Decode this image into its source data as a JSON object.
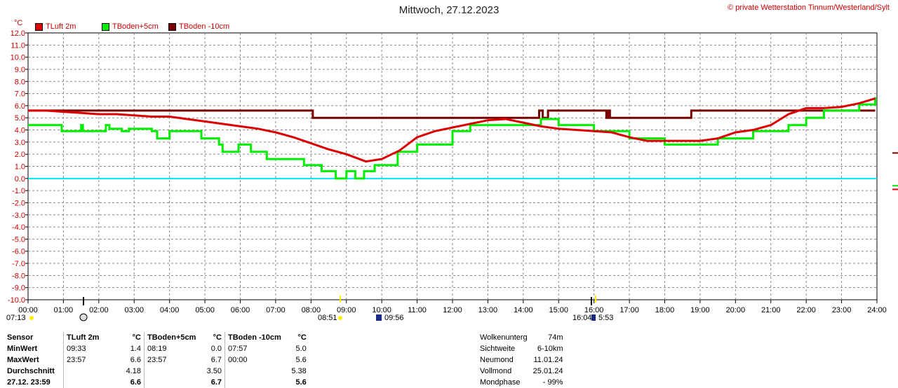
{
  "header": {
    "title": "Mittwoch, 27.12.2023",
    "credit": "© private Wetterstation Tinnum/Westerland/Sylt",
    "unit": "°C"
  },
  "colors": {
    "tluft": "#dd0000",
    "tboden5": "#00ee00",
    "tboden10": "#7a0000",
    "zero_line": "#00e5ee",
    "grid": "#888888"
  },
  "chart_data": {
    "type": "line",
    "title": "Mittwoch, 27.12.2023",
    "ylabel": "°C",
    "ylim": [
      -10,
      12
    ],
    "xlim": [
      0,
      24
    ],
    "grid": true,
    "legend": "top-left",
    "y_ticks": [
      "12.0",
      "11.0",
      "10.0",
      "9.0",
      "8.0",
      "7.0",
      "6.0",
      "5.0",
      "4.0",
      "3.0",
      "2.0",
      "1.0",
      "0.0",
      "-1.0",
      "-2.0",
      "-3.0",
      "-4.0",
      "-5.0",
      "-6.0",
      "-7.0",
      "-8.0",
      "-9.0",
      "-10.0"
    ],
    "x_ticks": [
      "00:00",
      "01:00",
      "02:00",
      "03:00",
      "04:00",
      "05:00",
      "06:00",
      "07:00",
      "08:00",
      "09:00",
      "10:00",
      "11:00",
      "12:00",
      "13:00",
      "14:00",
      "15:00",
      "16:00",
      "17:00",
      "18:00",
      "19:00",
      "20:00",
      "21:00",
      "22:00",
      "23:00",
      "24:00"
    ],
    "series": [
      {
        "name": "TLuft 2m",
        "color": "#dd0000",
        "x": [
          0,
          0.5,
          1,
          1.5,
          2,
          2.5,
          3,
          3.5,
          4,
          4.5,
          5,
          5.5,
          6,
          6.5,
          7,
          7.5,
          8,
          8.5,
          9,
          9.55,
          10,
          10.5,
          11,
          11.5,
          12,
          12.5,
          13,
          13.5,
          14,
          14.5,
          15,
          15.5,
          16,
          16.5,
          17,
          17.5,
          18,
          18.5,
          19,
          19.5,
          20,
          20.5,
          21,
          21.5,
          22,
          22.5,
          23,
          23.5,
          23.95
        ],
        "values": [
          5.6,
          5.6,
          5.5,
          5.4,
          5.3,
          5.3,
          5.2,
          5.1,
          5.1,
          4.9,
          4.7,
          4.5,
          4.3,
          4.1,
          3.8,
          3.4,
          2.9,
          2.4,
          2.0,
          1.4,
          1.6,
          2.3,
          3.4,
          3.9,
          4.2,
          4.5,
          4.8,
          4.9,
          4.6,
          4.3,
          4.1,
          4.0,
          3.9,
          3.8,
          3.4,
          3.1,
          3.1,
          3.1,
          3.1,
          3.3,
          3.8,
          4.0,
          4.4,
          5.3,
          5.8,
          5.8,
          5.9,
          6.2,
          6.6
        ]
      },
      {
        "name": "TBoden+5cm",
        "color": "#00ee00",
        "x": [
          0,
          0.3,
          0.35,
          0.9,
          0.95,
          1.5,
          1.55,
          2.2,
          2.3,
          2.65,
          2.85,
          3.3,
          3.5,
          3.65,
          4.0,
          4.9,
          5.4,
          5.5,
          5.95,
          6.3,
          6.75,
          7.2,
          7.8,
          8.1,
          8.3,
          8.5,
          8.7,
          9.0,
          9.25,
          9.5,
          9.8,
          10.2,
          10.45,
          11.0,
          12.0,
          12.5,
          13.5,
          14.5,
          15.0,
          15.5,
          16.0,
          16.5,
          17.0,
          18.0,
          18.5,
          19.0,
          19.5,
          20.0,
          20.5,
          21.0,
          21.5,
          22.0,
          22.5,
          23.0,
          23.5,
          23.95
        ],
        "values": [
          4.4,
          4.4,
          4.4,
          4.4,
          3.9,
          4.4,
          3.9,
          4.4,
          4.1,
          3.9,
          4.1,
          4.1,
          3.9,
          3.3,
          3.9,
          3.3,
          2.8,
          2.2,
          2.8,
          2.2,
          1.6,
          1.6,
          1.1,
          1.1,
          0.6,
          0.6,
          0.0,
          0.6,
          0.0,
          0.6,
          1.1,
          1.1,
          2.2,
          2.8,
          3.9,
          4.4,
          4.4,
          4.9,
          4.4,
          4.4,
          3.9,
          3.9,
          3.3,
          2.8,
          2.8,
          2.8,
          3.3,
          3.3,
          3.9,
          3.9,
          4.4,
          5.0,
          5.6,
          5.6,
          6.1,
          6.7
        ]
      },
      {
        "name": "TBoden -10cm",
        "color": "#7a0000",
        "x": [
          0,
          4,
          7.95,
          8.05,
          13.0,
          14.4,
          14.45,
          14.55,
          14.7,
          16.0,
          16.3,
          16.35,
          16.4,
          16.45,
          16.5,
          18.0,
          18.5,
          18.65,
          18.75,
          19.0,
          21.0,
          22.0,
          23.95
        ],
        "values": [
          5.6,
          5.6,
          5.6,
          5.0,
          5.0,
          5.0,
          5.6,
          5.0,
          5.6,
          5.6,
          5.6,
          5.0,
          5.6,
          5.0,
          5.0,
          5.0,
          5.0,
          5.0,
          5.6,
          5.6,
          5.6,
          5.6,
          5.6
        ]
      }
    ]
  },
  "astro": {
    "sunrise": "07:13",
    "t1": "08:51",
    "t2": "09:56",
    "t3": "16:04",
    "t4": "5:53"
  },
  "legend": {
    "s1": "TLuft 2m",
    "s2": "TBoden+5cm",
    "s3": "TBoden -10cm"
  },
  "table": {
    "header": {
      "sensor": "Sensor",
      "tluft": "TLuft 2m",
      "unit1": "°C",
      "tb5": "TBoden+5cm",
      "unit2": "°C",
      "tb10": "TBoden -10cm",
      "unit3": "°C"
    },
    "rows": [
      {
        "label": "MinWert",
        "t1": "09:33",
        "v1": "1.4",
        "t2": "08:19",
        "v2": "0.0",
        "t3": "07:57",
        "v3": "5.0"
      },
      {
        "label": "MaxWert",
        "t1": "23:57",
        "v1": "6.6",
        "t2": "23:57",
        "v2": "6.7",
        "t3": "00:00",
        "v3": "5.6"
      },
      {
        "label": "Durchschnitt",
        "t1": "",
        "v1": "4.18",
        "t2": "",
        "v2": "3.50",
        "t3": "",
        "v3": "5.38"
      },
      {
        "label": "27.12. 23:59",
        "t1": "",
        "v1": "6.6",
        "t2": "",
        "v2": "6.7",
        "t3": "",
        "v3": "5.6"
      }
    ]
  },
  "extra": [
    {
      "label": "Wolkenunterg",
      "value": "74m"
    },
    {
      "label": "Sichtweite",
      "value": "6-10km"
    },
    {
      "label": "Neumond",
      "value": "11.01.24"
    },
    {
      "label": "Vollmond",
      "value": "25.01.24"
    },
    {
      "label": "Mondphase",
      "value": "- 99%"
    }
  ]
}
